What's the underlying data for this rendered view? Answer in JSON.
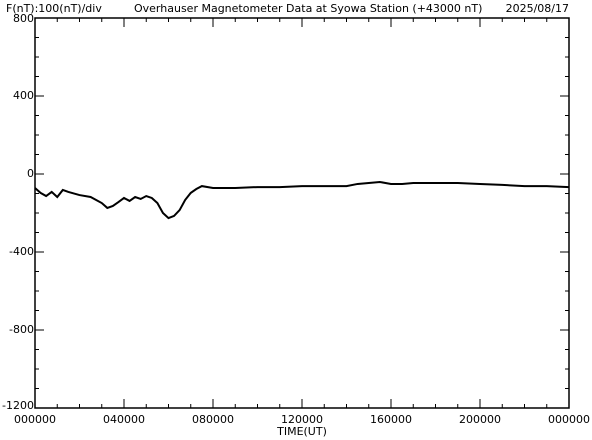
{
  "chart_data": {
    "type": "line",
    "scale_label": "F(nT):100(nT)/div",
    "title": "Overhauser Magnetometer Data at Syowa Station (+43000 nT)",
    "date": "2025/08/17",
    "xlabel": "TIME(UT)",
    "xlim": [
      0,
      24
    ],
    "xticks": [
      {
        "value": 0,
        "label": "000000"
      },
      {
        "value": 4,
        "label": "040000"
      },
      {
        "value": 8,
        "label": "080000"
      },
      {
        "value": 12,
        "label": "120000"
      },
      {
        "value": 16,
        "label": "160000"
      },
      {
        "value": 20,
        "label": "200000"
      },
      {
        "value": 24,
        "label": "000000"
      }
    ],
    "x_minor_step": 1,
    "ylim": [
      -1200,
      800
    ],
    "yticks": [
      800,
      400,
      0,
      -400,
      -800,
      -1200
    ],
    "y_minor_step": 100,
    "series": [
      {
        "color": "#000000",
        "x": [
          0,
          0.25,
          0.5,
          0.75,
          1,
          1.25,
          1.5,
          2,
          2.5,
          3,
          3.25,
          3.5,
          3.75,
          4,
          4.25,
          4.5,
          4.75,
          5,
          5.25,
          5.5,
          5.75,
          6,
          6.25,
          6.5,
          6.75,
          7,
          7.25,
          7.5,
          8,
          9,
          10,
          11,
          12,
          13,
          14,
          14.5,
          15,
          15.5,
          16,
          16.5,
          17,
          18,
          19,
          20,
          21,
          22,
          23,
          24
        ],
        "values": [
          -72,
          -97,
          -113,
          -92,
          -118,
          -82,
          -92,
          -108,
          -118,
          -149,
          -174,
          -164,
          -144,
          -123,
          -138,
          -118,
          -128,
          -113,
          -123,
          -149,
          -200,
          -226,
          -215,
          -185,
          -133,
          -97,
          -77,
          -62,
          -72,
          -72,
          -67,
          -67,
          -62,
          -62,
          -62,
          -51,
          -46,
          -41,
          -51,
          -51,
          -46,
          -46,
          -46,
          -51,
          -56,
          -62,
          -62,
          -67
        ]
      }
    ]
  }
}
